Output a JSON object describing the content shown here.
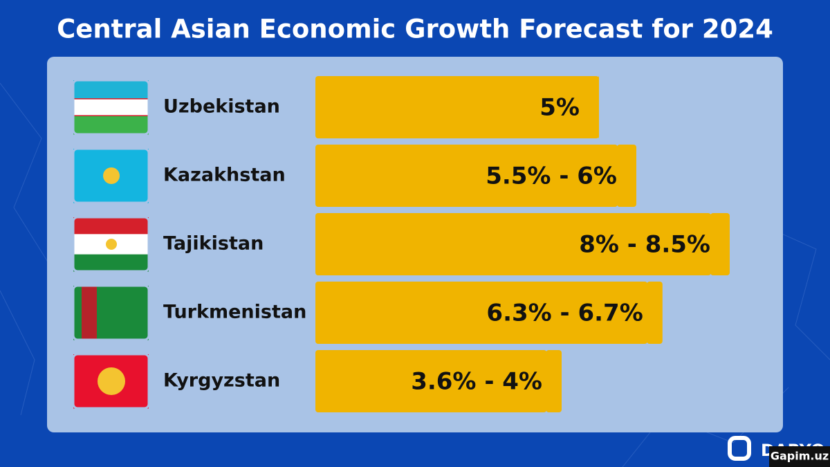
{
  "chart_data": {
    "type": "range-bar",
    "title": "Central Asian Economic Growth Forecast for 2024",
    "categories": [
      "Uzbekistan",
      "Kazakhstan",
      "Tajikistan",
      "Turkmenistan",
      "Kyrgyzstan"
    ],
    "low": [
      5,
      5.5,
      8,
      6.3,
      3.6
    ],
    "high": [
      5,
      6,
      8.5,
      6.7,
      4
    ],
    "value_labels": [
      "5%",
      "5.5% - 6%",
      "8% - 8.5%",
      "6.3% - 6.7%",
      "3.6% - 4%"
    ],
    "color": "#f0b400"
  },
  "brand": "DARYO",
  "watermark": "Gapim.uz"
}
